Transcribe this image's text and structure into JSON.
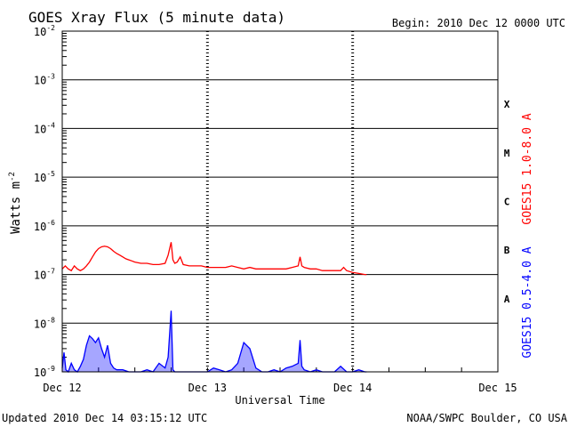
{
  "header": {
    "title": "GOES Xray Flux (5 minute data)",
    "begin": "Begin:  2010 Dec 12 0000 UTC"
  },
  "footer": {
    "updated": "Updated 2010 Dec 14 03:15:12 UTC",
    "credit": "NOAA/SWPC Boulder, CO USA"
  },
  "colors": {
    "long_channel": "#ff0000",
    "short_channel": "#0000ff",
    "axes": "#000000"
  },
  "chart_data": {
    "type": "line",
    "title": "GOES Xray Flux (5 minute data)",
    "xlabel": "Universal Time",
    "ylabel": "Watts m",
    "ylabel_sup": "-2",
    "y_scale": "log",
    "ylim": [
      1e-09,
      0.01
    ],
    "xlim": [
      0,
      72
    ],
    "x_unit": "hours since 2010 Dec 12 0000 UTC",
    "x_ticks": [
      {
        "x": 0,
        "label": "Dec 12"
      },
      {
        "x": 24,
        "label": "Dec 13"
      },
      {
        "x": 48,
        "label": "Dec 14"
      },
      {
        "x": 72,
        "label": "Dec 15"
      }
    ],
    "y_ticks": [
      {
        "exp": -2,
        "base": "10",
        "sup": "-2"
      },
      {
        "exp": -3,
        "base": "10",
        "sup": "-3"
      },
      {
        "exp": -4,
        "base": "10",
        "sup": "-4"
      },
      {
        "exp": -5,
        "base": "10",
        "sup": "-5"
      },
      {
        "exp": -6,
        "base": "10",
        "sup": "-6"
      },
      {
        "exp": -7,
        "base": "10",
        "sup": "-7"
      },
      {
        "exp": -8,
        "base": "10",
        "sup": "-8"
      },
      {
        "exp": -9,
        "base": "10",
        "sup": "-9"
      }
    ],
    "flare_classes": [
      {
        "label": "X",
        "exp": -3.5
      },
      {
        "label": "M",
        "exp": -4.5
      },
      {
        "label": "C",
        "exp": -5.5
      },
      {
        "label": "B",
        "exp": -6.5
      },
      {
        "label": "A",
        "exp": -7.5
      }
    ],
    "grid": {
      "horizontal": true,
      "vertical_day_markers": true
    },
    "legend_position": "right-vertical",
    "series": [
      {
        "name": "GOES15 1.0-8.0 A",
        "color": "#ff0000",
        "x": [
          0,
          0.5,
          1,
          1.5,
          2,
          2.5,
          3,
          3.5,
          4,
          4.5,
          5,
          5.5,
          6,
          6.5,
          7,
          7.5,
          8,
          8.5,
          9,
          9.5,
          10,
          10.5,
          11,
          11.5,
          12,
          13,
          14,
          15,
          16,
          17,
          17.5,
          18,
          18.3,
          18.6,
          19,
          19.5,
          20,
          21,
          22,
          23,
          24,
          25,
          26,
          27,
          28,
          29,
          30,
          31,
          32,
          33,
          34,
          35,
          36,
          37,
          38,
          39,
          39.3,
          39.6,
          40,
          41,
          42,
          43,
          44,
          45,
          46,
          46.5,
          47,
          48,
          49,
          50,
          50.3
        ],
        "values": [
          1.3e-07,
          1.5e-07,
          1.3e-07,
          1.2e-07,
          1.5e-07,
          1.3e-07,
          1.2e-07,
          1.3e-07,
          1.5e-07,
          1.8e-07,
          2.3e-07,
          2.9e-07,
          3.4e-07,
          3.7e-07,
          3.8e-07,
          3.7e-07,
          3.4e-07,
          3e-07,
          2.7e-07,
          2.5e-07,
          2.3e-07,
          2.1e-07,
          2e-07,
          1.9e-07,
          1.8e-07,
          1.7e-07,
          1.7e-07,
          1.6e-07,
          1.6e-07,
          1.7e-07,
          2.5e-07,
          4.6e-07,
          2e-07,
          1.7e-07,
          1.8e-07,
          2.3e-07,
          1.6e-07,
          1.5e-07,
          1.5e-07,
          1.5e-07,
          1.4e-07,
          1.4e-07,
          1.4e-07,
          1.4e-07,
          1.5e-07,
          1.4e-07,
          1.3e-07,
          1.4e-07,
          1.3e-07,
          1.3e-07,
          1.3e-07,
          1.3e-07,
          1.3e-07,
          1.3e-07,
          1.4e-07,
          1.5e-07,
          2.3e-07,
          1.5e-07,
          1.4e-07,
          1.3e-07,
          1.3e-07,
          1.2e-07,
          1.2e-07,
          1.2e-07,
          1.2e-07,
          1.4e-07,
          1.2e-07,
          1.1e-07,
          1.05e-07,
          1e-07,
          1e-07
        ]
      },
      {
        "name": "GOES15 0.5-4.0 A",
        "color": "#0000ff",
        "x": [
          0,
          0.3,
          0.6,
          1,
          1.5,
          2,
          2.5,
          3,
          3.5,
          4,
          4.5,
          5,
          5.5,
          6,
          6.5,
          7,
          7.5,
          8,
          8.5,
          9,
          10,
          11,
          12,
          13,
          14,
          15,
          16,
          17,
          17.5,
          18,
          18.3,
          18.6,
          19,
          20,
          21,
          22,
          23,
          24,
          25,
          26,
          27,
          28,
          29,
          30,
          31,
          32,
          33,
          34,
          35,
          36,
          37,
          38,
          39,
          39.3,
          39.6,
          40,
          41,
          42,
          43,
          44,
          45,
          46,
          47,
          48,
          49,
          50,
          50.3
        ],
        "values": [
          1.2e-09,
          2.5e-09,
          1.1e-09,
          1e-09,
          1.5e-09,
          1.1e-09,
          1e-09,
          1.3e-09,
          1.8e-09,
          3.5e-09,
          5.5e-09,
          4.8e-09,
          4e-09,
          5e-09,
          3e-09,
          2e-09,
          3.5e-09,
          1.5e-09,
          1.2e-09,
          1.1e-09,
          1.1e-09,
          1e-09,
          1e-09,
          1e-09,
          1.1e-09,
          1e-09,
          1.5e-09,
          1.2e-09,
          2e-09,
          1.8e-08,
          1.1e-09,
          1e-09,
          1e-09,
          1e-09,
          1e-09,
          1e-09,
          1e-09,
          1e-09,
          1.2e-09,
          1.1e-09,
          1e-09,
          1.1e-09,
          1.5e-09,
          4e-09,
          3e-09,
          1.2e-09,
          1e-09,
          1e-09,
          1.1e-09,
          1e-09,
          1.2e-09,
          1.3e-09,
          1.5e-09,
          4.5e-09,
          1.3e-09,
          1.1e-09,
          1e-09,
          1.1e-09,
          1e-09,
          1e-09,
          1e-09,
          1.3e-09,
          1e-09,
          1e-09,
          1.1e-09,
          1e-09,
          1e-09
        ]
      }
    ]
  }
}
